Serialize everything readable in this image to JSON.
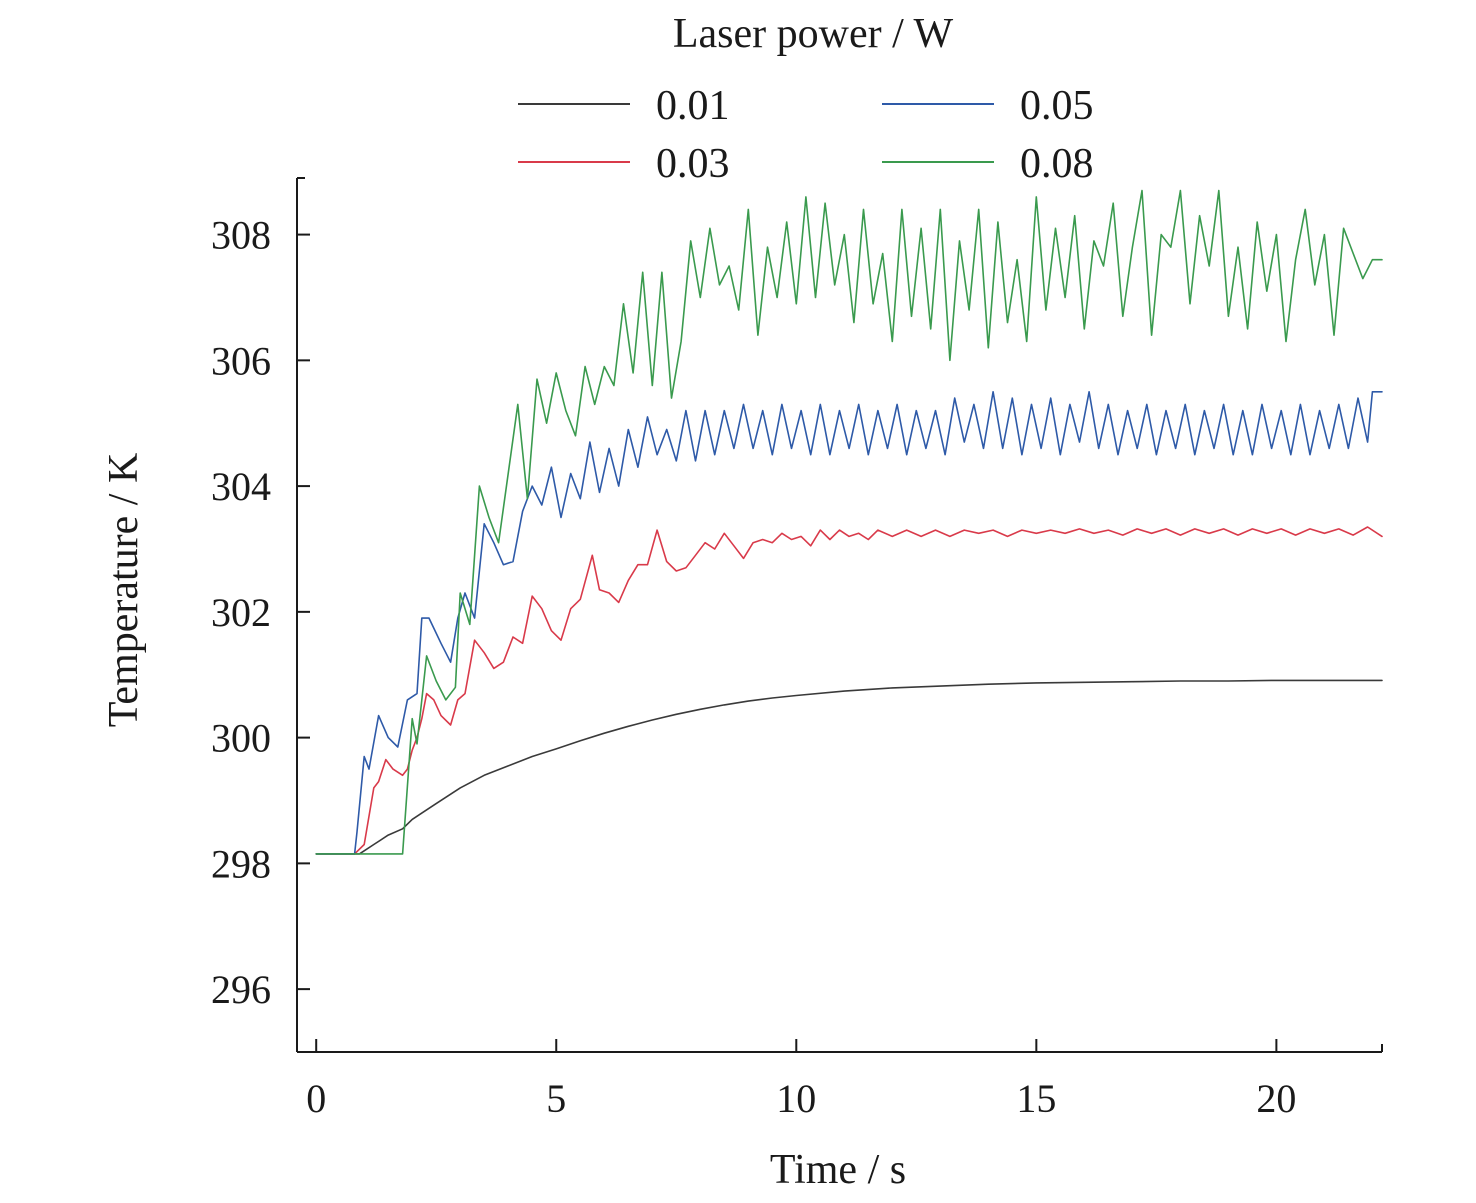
{
  "chart_data": {
    "type": "line",
    "title": "",
    "xlabel": "Time / s",
    "ylabel": "Temperature / K",
    "xlim": [
      -0.4,
      22.2
    ],
    "ylim": [
      295,
      308.9
    ],
    "xticks": [
      0,
      5,
      10,
      15,
      20
    ],
    "yticks": [
      296,
      298,
      300,
      302,
      304,
      306,
      308
    ],
    "grid": false,
    "legend": {
      "title": "Laser power / W",
      "placement": "top-center",
      "columns": 2
    },
    "series": [
      {
        "name": "0.01",
        "color": "#3a3a3a",
        "x": [
          0,
          0.5,
          0.9,
          1.0,
          1.2,
          1.5,
          1.8,
          2.0,
          2.2,
          2.5,
          2.8,
          3.0,
          3.5,
          4.0,
          4.5,
          5.0,
          5.5,
          6.0,
          6.5,
          7.0,
          7.5,
          8.0,
          8.5,
          9.0,
          9.5,
          10.0,
          11.0,
          12.0,
          13.0,
          14.0,
          15.0,
          16.0,
          17.0,
          18.0,
          19.0,
          20.0,
          21.0,
          22.2
        ],
        "y": [
          298.15,
          298.15,
          298.15,
          298.2,
          298.3,
          298.45,
          298.55,
          298.7,
          298.8,
          298.95,
          299.1,
          299.2,
          299.4,
          299.55,
          299.7,
          299.82,
          299.95,
          300.07,
          300.18,
          300.28,
          300.37,
          300.45,
          300.52,
          300.58,
          300.63,
          300.67,
          300.74,
          300.79,
          300.82,
          300.85,
          300.87,
          300.88,
          300.89,
          300.9,
          300.9,
          300.91,
          300.91,
          300.91
        ]
      },
      {
        "name": "0.03",
        "color": "#d93a4a",
        "x": [
          0,
          0.8,
          1.0,
          1.2,
          1.3,
          1.45,
          1.6,
          1.8,
          1.9,
          2.0,
          2.1,
          2.2,
          2.3,
          2.45,
          2.6,
          2.8,
          2.95,
          3.1,
          3.3,
          3.5,
          3.7,
          3.9,
          4.1,
          4.3,
          4.5,
          4.7,
          4.9,
          5.1,
          5.3,
          5.5,
          5.75,
          5.9,
          6.1,
          6.3,
          6.5,
          6.7,
          6.9,
          7.1,
          7.3,
          7.5,
          7.7,
          7.9,
          8.1,
          8.3,
          8.5,
          8.7,
          8.9,
          9.1,
          9.3,
          9.5,
          9.7,
          9.9,
          10.1,
          10.3,
          10.5,
          10.7,
          10.9,
          11.1,
          11.3,
          11.5,
          11.7,
          12.0,
          12.3,
          12.6,
          12.9,
          13.2,
          13.5,
          13.8,
          14.1,
          14.4,
          14.7,
          15.0,
          15.3,
          15.6,
          15.9,
          16.2,
          16.5,
          16.8,
          17.1,
          17.4,
          17.7,
          18.0,
          18.3,
          18.6,
          18.9,
          19.2,
          19.5,
          19.8,
          20.1,
          20.4,
          20.7,
          21.0,
          21.3,
          21.6,
          21.9,
          22.2
        ],
        "y": [
          298.15,
          298.15,
          298.3,
          299.2,
          299.3,
          299.65,
          299.5,
          299.4,
          299.5,
          299.8,
          300.0,
          300.3,
          300.7,
          300.6,
          300.35,
          300.2,
          300.6,
          300.7,
          301.55,
          301.35,
          301.1,
          301.2,
          301.6,
          301.5,
          302.25,
          302.05,
          301.7,
          301.55,
          302.05,
          302.2,
          302.9,
          302.35,
          302.3,
          302.15,
          302.5,
          302.75,
          302.75,
          303.3,
          302.8,
          302.65,
          302.7,
          302.9,
          303.1,
          303.0,
          303.25,
          303.05,
          302.85,
          303.1,
          303.15,
          303.1,
          303.25,
          303.15,
          303.2,
          303.05,
          303.3,
          303.15,
          303.3,
          303.2,
          303.25,
          303.15,
          303.3,
          303.2,
          303.3,
          303.2,
          303.3,
          303.2,
          303.3,
          303.25,
          303.3,
          303.2,
          303.3,
          303.25,
          303.3,
          303.25,
          303.32,
          303.25,
          303.3,
          303.22,
          303.32,
          303.25,
          303.32,
          303.22,
          303.32,
          303.25,
          303.32,
          303.22,
          303.32,
          303.25,
          303.32,
          303.22,
          303.32,
          303.25,
          303.32,
          303.22,
          303.35,
          303.2
        ]
      },
      {
        "name": "0.05",
        "color": "#2e5aa8",
        "x": [
          0,
          0.8,
          0.85,
          1.0,
          1.1,
          1.3,
          1.5,
          1.7,
          1.9,
          2.1,
          2.2,
          2.35,
          2.6,
          2.8,
          2.95,
          3.1,
          3.3,
          3.5,
          3.7,
          3.9,
          4.1,
          4.3,
          4.5,
          4.7,
          4.9,
          5.1,
          5.3,
          5.5,
          5.7,
          5.9,
          6.1,
          6.3,
          6.5,
          6.7,
          6.9,
          7.1,
          7.3,
          7.5,
          7.7,
          7.9,
          8.1,
          8.3,
          8.5,
          8.7,
          8.9,
          9.1,
          9.3,
          9.5,
          9.7,
          9.9,
          10.1,
          10.3,
          10.5,
          10.7,
          10.9,
          11.1,
          11.3,
          11.5,
          11.7,
          11.9,
          12.1,
          12.3,
          12.5,
          12.7,
          12.9,
          13.1,
          13.3,
          13.5,
          13.7,
          13.9,
          14.1,
          14.3,
          14.5,
          14.7,
          14.9,
          15.1,
          15.3,
          15.5,
          15.7,
          15.9,
          16.1,
          16.3,
          16.5,
          16.7,
          16.9,
          17.1,
          17.3,
          17.5,
          17.7,
          17.9,
          18.1,
          18.3,
          18.5,
          18.7,
          18.9,
          19.1,
          19.3,
          19.5,
          19.7,
          19.9,
          20.1,
          20.3,
          20.5,
          20.7,
          20.9,
          21.1,
          21.3,
          21.5,
          21.7,
          21.9,
          22.0,
          22.2
        ],
        "y": [
          298.15,
          298.15,
          298.5,
          299.7,
          299.5,
          300.35,
          300.0,
          299.85,
          300.6,
          300.7,
          301.9,
          301.9,
          301.5,
          301.2,
          301.9,
          302.3,
          301.9,
          303.4,
          303.1,
          302.75,
          302.8,
          303.6,
          304.0,
          303.7,
          304.3,
          303.5,
          304.2,
          303.8,
          304.7,
          303.9,
          304.6,
          304.0,
          304.9,
          304.3,
          305.1,
          304.5,
          304.9,
          304.4,
          305.2,
          304.4,
          305.2,
          304.5,
          305.2,
          304.6,
          305.3,
          304.6,
          305.2,
          304.5,
          305.3,
          304.6,
          305.2,
          304.5,
          305.3,
          304.5,
          305.2,
          304.6,
          305.3,
          304.5,
          305.2,
          304.6,
          305.3,
          304.5,
          305.2,
          304.6,
          305.2,
          304.5,
          305.4,
          304.7,
          305.3,
          304.6,
          305.5,
          304.6,
          305.4,
          304.5,
          305.3,
          304.6,
          305.4,
          304.5,
          305.3,
          304.7,
          305.5,
          304.6,
          305.3,
          304.5,
          305.2,
          304.6,
          305.3,
          304.5,
          305.2,
          304.6,
          305.3,
          304.5,
          305.2,
          304.6,
          305.3,
          304.5,
          305.2,
          304.5,
          305.3,
          304.6,
          305.2,
          304.5,
          305.3,
          304.5,
          305.2,
          304.6,
          305.3,
          304.6,
          305.4,
          304.7,
          305.5,
          305.5
        ]
      },
      {
        "name": "0.08",
        "color": "#3a9a4e",
        "x": [
          0,
          1.0,
          1.8,
          2.0,
          2.1,
          2.3,
          2.5,
          2.7,
          2.9,
          3.0,
          3.2,
          3.4,
          3.6,
          3.8,
          4.0,
          4.2,
          4.4,
          4.6,
          4.8,
          5.0,
          5.2,
          5.4,
          5.6,
          5.8,
          6.0,
          6.2,
          6.4,
          6.6,
          6.8,
          7.0,
          7.2,
          7.4,
          7.6,
          7.8,
          8.0,
          8.2,
          8.4,
          8.6,
          8.8,
          9.0,
          9.2,
          9.4,
          9.6,
          9.8,
          10.0,
          10.2,
          10.4,
          10.6,
          10.8,
          11.0,
          11.2,
          11.4,
          11.6,
          11.8,
          12.0,
          12.2,
          12.4,
          12.6,
          12.8,
          13.0,
          13.2,
          13.4,
          13.6,
          13.8,
          14.0,
          14.2,
          14.4,
          14.6,
          14.8,
          15.0,
          15.2,
          15.4,
          15.6,
          15.8,
          16.0,
          16.2,
          16.4,
          16.6,
          16.8,
          17.0,
          17.2,
          17.4,
          17.6,
          17.8,
          18.0,
          18.2,
          18.4,
          18.6,
          18.8,
          19.0,
          19.2,
          19.4,
          19.6,
          19.8,
          20.0,
          20.2,
          20.4,
          20.6,
          20.8,
          21.0,
          21.2,
          21.4,
          21.6,
          21.8,
          22.0,
          22.2
        ],
        "y": [
          298.15,
          298.15,
          298.15,
          300.3,
          299.9,
          301.3,
          300.9,
          300.6,
          300.8,
          302.3,
          301.8,
          304.0,
          303.5,
          303.1,
          304.2,
          305.3,
          303.8,
          305.7,
          305.0,
          305.8,
          305.2,
          304.8,
          305.9,
          305.3,
          305.9,
          305.6,
          306.9,
          305.8,
          307.4,
          305.6,
          307.4,
          305.4,
          306.3,
          307.9,
          307.0,
          308.1,
          307.2,
          307.5,
          306.8,
          308.4,
          306.4,
          307.8,
          307.0,
          308.2,
          306.9,
          308.6,
          307.0,
          308.5,
          307.2,
          308.0,
          306.6,
          308.4,
          306.9,
          307.7,
          306.3,
          308.4,
          306.7,
          308.1,
          306.5,
          308.4,
          306.0,
          307.9,
          306.8,
          308.4,
          306.2,
          308.2,
          306.6,
          307.6,
          306.3,
          308.6,
          306.8,
          308.1,
          307.0,
          308.3,
          306.5,
          307.9,
          307.5,
          308.5,
          306.7,
          307.8,
          308.7,
          306.4,
          308.0,
          307.8,
          308.7,
          306.9,
          308.3,
          307.5,
          308.7,
          306.7,
          307.8,
          306.5,
          308.2,
          307.1,
          308.0,
          306.3,
          307.6,
          308.4,
          307.2,
          308.0,
          306.4,
          308.1,
          307.7,
          307.3,
          307.6,
          307.6
        ]
      }
    ]
  }
}
